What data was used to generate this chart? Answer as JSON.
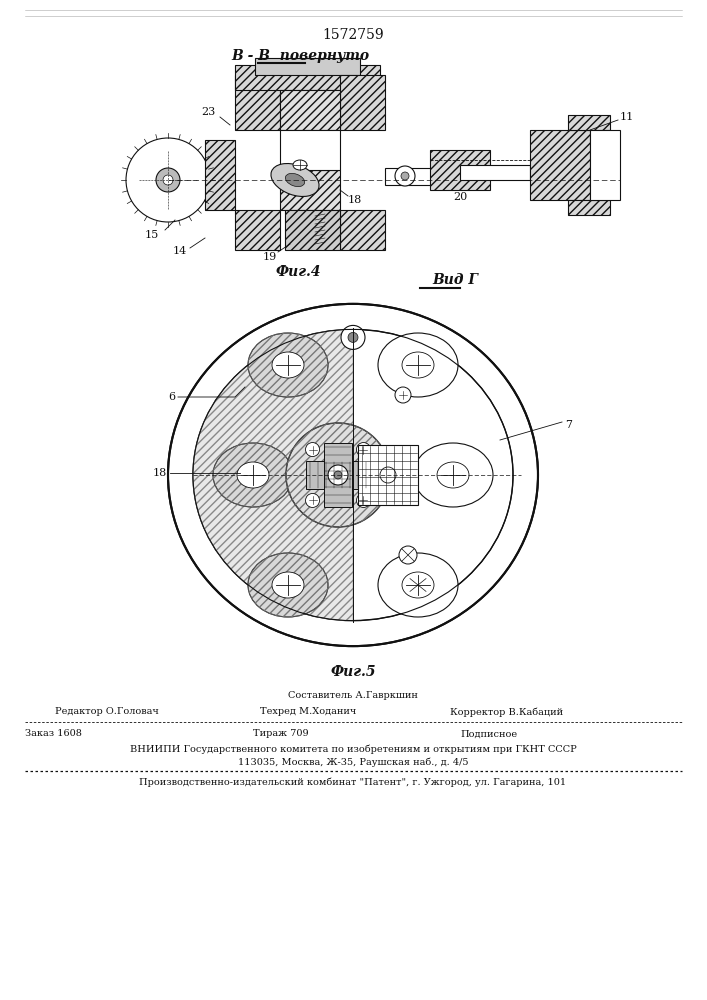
{
  "patent_number": "1572759",
  "fig4_label": "В - В  повернуто",
  "fig4_caption": "Фиг.4",
  "fig5_caption": "Фиг.5",
  "view_g_label": "Вид Г",
  "bg_color": "#ffffff",
  "line_color": "#111111",
  "footer_sestavitel": "Составитель А.Гавркшин",
  "footer_line1_left": "Редактор О.Головач",
  "footer_line1_mid": "Техред М.Хoданич",
  "footer_line1_right": "Корректор В.Кабаций",
  "footer_line2_left": "Заказ 1608",
  "footer_line2_mid": "Тираж 709",
  "footer_line2_right": "Подписное",
  "footer_line3": "ВНИИПИ Государственного комитета по изобретениям и открытиям при ГКНТ СССР",
  "footer_line4": "113035, Москва, Ж-35, Раушская наб., д. 4/5",
  "footer_line5": "Производственно-издательский комбинат \"Патент\", г. Ужгород, ул. Гагарина, 101",
  "label_23": "23",
  "label_15": "15",
  "label_14": "14",
  "label_19": "19",
  "label_18_fig4": "18",
  "label_20": "20",
  "label_11": "11",
  "label_6": "6",
  "label_18_fig5": "18",
  "label_7": "7"
}
